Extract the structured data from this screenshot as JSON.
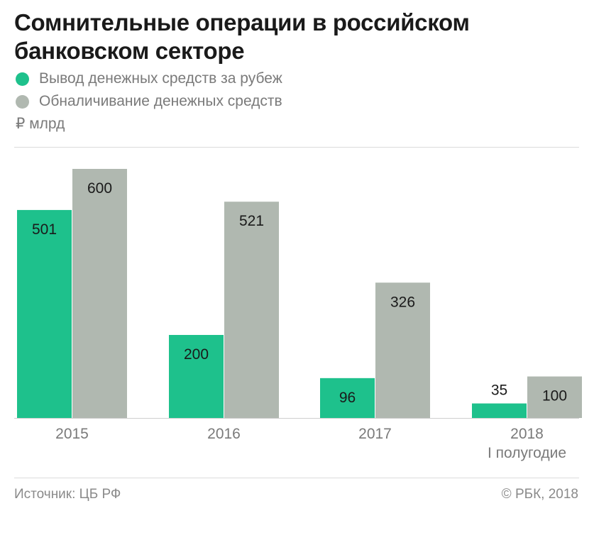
{
  "header": {
    "title": "Сомнительные операции в российском банковском секторе"
  },
  "legend": [
    {
      "label": "Вывод денежных средств за рубеж",
      "color": "#1ec18c"
    },
    {
      "label": "Обналичивание денежных средств",
      "color": "#b0b8b0"
    }
  ],
  "unit_label": "₽ млрд",
  "footer": {
    "source": "Источник: ЦБ РФ",
    "copyright": "© РБК, 2018"
  },
  "chart_data": {
    "type": "bar",
    "categories": [
      "2015",
      "2016",
      "2017",
      "2018"
    ],
    "category_sublabels": [
      "",
      "",
      "",
      "I полугодие"
    ],
    "series": [
      {
        "name": "Вывод денежных средств за рубеж",
        "values": [
          501,
          200,
          96,
          35
        ],
        "color": "#1ec18c"
      },
      {
        "name": "Обналичивание денежных средств",
        "values": [
          600,
          521,
          326,
          100
        ],
        "color": "#b0b8b0"
      }
    ],
    "ylabel": "₽ млрд",
    "ylim": [
      0,
      600
    ],
    "grid": false,
    "legend_position": "top-left"
  }
}
